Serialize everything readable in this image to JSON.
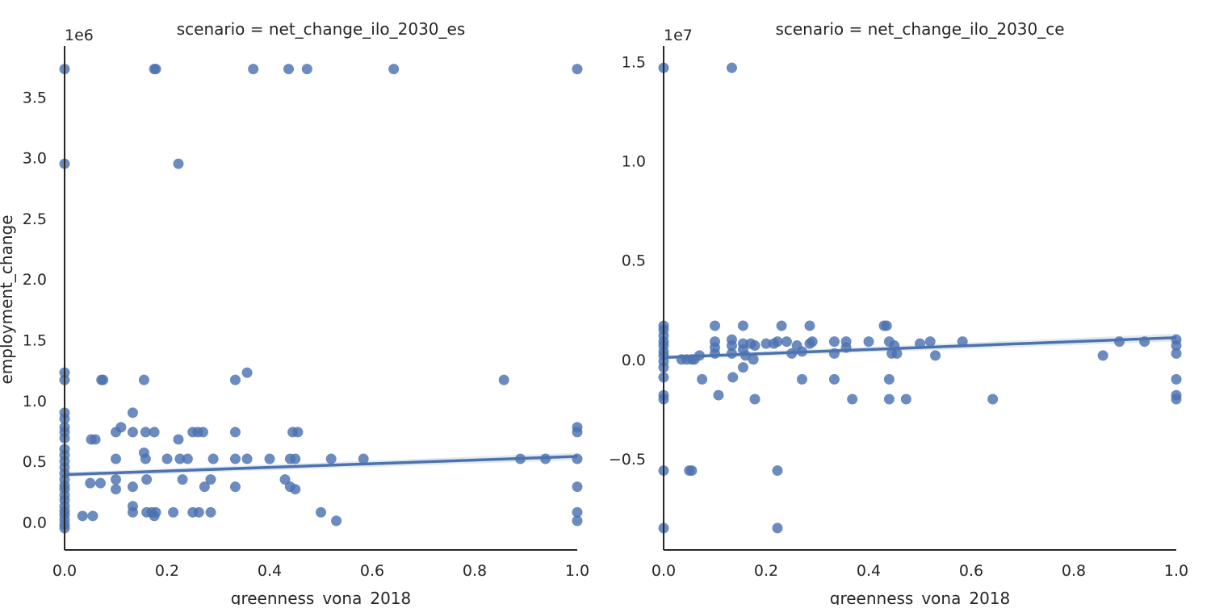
{
  "chart_data": [
    {
      "type": "scatter",
      "title": "scenario = net_change_ilo_2030_es",
      "xlabel": "greenness_vona_2018",
      "ylabel": "employment_change",
      "offset_text": "1e6",
      "xlim": [
        0,
        1
      ],
      "ylim": [
        -0.23,
        3.92
      ],
      "y_scale_factor": 1000000,
      "xticks": [
        0,
        0.2,
        0.4,
        0.6,
        0.8,
        1
      ],
      "xtick_labels": [
        "0.0",
        "0.2",
        "0.4",
        "0.6",
        "0.8",
        "1.0"
      ],
      "yticks": [
        0,
        0.5,
        1,
        1.5,
        2,
        2.5,
        3,
        3.5
      ],
      "ytick_labels": [
        "0.0",
        "0.5",
        "1.0",
        "1.5",
        "2.0",
        "2.5",
        "3.0",
        "3.5"
      ],
      "grid": false,
      "marker_color": "#4c72b0",
      "regression": {
        "x": [
          0,
          1
        ],
        "y": [
          0.39,
          0.54
        ],
        "ci_upper": [
          0.41,
          0.57
        ],
        "ci_lower": [
          0.37,
          0.51
        ]
      },
      "points": [
        [
          0,
          3.73
        ],
        [
          0,
          2.95
        ],
        [
          0,
          1.23
        ],
        [
          0,
          1.17
        ],
        [
          0,
          0.9
        ],
        [
          0,
          0.85
        ],
        [
          0,
          0.78
        ],
        [
          0,
          0.74
        ],
        [
          0,
          0.69
        ],
        [
          0,
          0.6
        ],
        [
          0,
          0.55
        ],
        [
          0,
          0.5
        ],
        [
          0,
          0.45
        ],
        [
          0,
          0.4
        ],
        [
          0,
          0.35
        ],
        [
          0,
          0.3
        ],
        [
          0,
          0.27
        ],
        [
          0,
          0.22
        ],
        [
          0,
          0.18
        ],
        [
          0,
          0.13
        ],
        [
          0,
          0.09
        ],
        [
          0,
          0.06
        ],
        [
          0,
          0.02
        ],
        [
          0,
          -0.02
        ],
        [
          0,
          -0.05
        ],
        [
          0.175,
          3.73
        ],
        [
          0.178,
          3.73
        ],
        [
          0.368,
          3.73
        ],
        [
          0.437,
          3.73
        ],
        [
          0.473,
          3.73
        ],
        [
          0.642,
          3.73
        ],
        [
          1.0,
          3.73
        ],
        [
          0.222,
          2.95
        ],
        [
          0.035,
          0.05
        ],
        [
          0.055,
          0.05
        ],
        [
          0.05,
          0.32
        ],
        [
          0.07,
          0.32
        ],
        [
          0.052,
          0.68
        ],
        [
          0.06,
          0.68
        ],
        [
          0.072,
          1.17
        ],
        [
          0.075,
          1.17
        ],
        [
          0.1,
          0.27
        ],
        [
          0.1,
          0.35
        ],
        [
          0.1,
          0.52
        ],
        [
          0.1,
          0.74
        ],
        [
          0.11,
          0.78
        ],
        [
          0.133,
          0.9
        ],
        [
          0.133,
          0.74
        ],
        [
          0.133,
          0.29
        ],
        [
          0.133,
          0.13
        ],
        [
          0.133,
          0.08
        ],
        [
          0.155,
          1.17
        ],
        [
          0.155,
          0.57
        ],
        [
          0.158,
          0.52
        ],
        [
          0.158,
          0.74
        ],
        [
          0.16,
          0.35
        ],
        [
          0.16,
          0.08
        ],
        [
          0.17,
          0.08
        ],
        [
          0.175,
          0.74
        ],
        [
          0.175,
          0.05
        ],
        [
          0.178,
          0.08
        ],
        [
          0.2,
          0.52
        ],
        [
          0.212,
          0.08
        ],
        [
          0.222,
          0.68
        ],
        [
          0.225,
          0.52
        ],
        [
          0.23,
          0.35
        ],
        [
          0.24,
          0.52
        ],
        [
          0.25,
          0.74
        ],
        [
          0.25,
          0.08
        ],
        [
          0.26,
          0.74
        ],
        [
          0.262,
          0.08
        ],
        [
          0.27,
          0.74
        ],
        [
          0.273,
          0.29
        ],
        [
          0.285,
          0.35
        ],
        [
          0.285,
          0.08
        ],
        [
          0.29,
          0.52
        ],
        [
          0.333,
          1.17
        ],
        [
          0.333,
          0.74
        ],
        [
          0.333,
          0.52
        ],
        [
          0.333,
          0.29
        ],
        [
          0.356,
          1.23
        ],
        [
          0.356,
          0.52
        ],
        [
          0.4,
          0.52
        ],
        [
          0.43,
          0.35
        ],
        [
          0.44,
          0.29
        ],
        [
          0.44,
          0.52
        ],
        [
          0.445,
          0.74
        ],
        [
          0.45,
          0.27
        ],
        [
          0.45,
          0.52
        ],
        [
          0.455,
          0.74
        ],
        [
          0.5,
          0.08
        ],
        [
          0.52,
          0.52
        ],
        [
          0.53,
          0.01
        ],
        [
          0.583,
          0.52
        ],
        [
          0.857,
          1.17
        ],
        [
          0.889,
          0.52
        ],
        [
          0.938,
          0.52
        ],
        [
          1.0,
          0.78
        ],
        [
          1.0,
          0.74
        ],
        [
          1.0,
          0.52
        ],
        [
          1.0,
          0.29
        ],
        [
          1.0,
          0.08
        ],
        [
          1.0,
          0.01
        ]
      ]
    },
    {
      "type": "scatter",
      "title": "scenario = net_change_ilo_2030_ce",
      "xlabel": "greenness_vona_2018",
      "ylabel": "",
      "offset_text": "1e7",
      "xlim": [
        0,
        1
      ],
      "ylim": [
        -0.96,
        1.58
      ],
      "y_scale_factor": 10000000,
      "xticks": [
        0,
        0.2,
        0.4,
        0.6,
        0.8,
        1
      ],
      "xtick_labels": [
        "0.0",
        "0.2",
        "0.4",
        "0.6",
        "0.8",
        "1.0"
      ],
      "yticks": [
        -0.5,
        0,
        0.5,
        1,
        1.5
      ],
      "ytick_labels": [
        "−0.5",
        "0.0",
        "0.5",
        "1.0",
        "1.5"
      ],
      "grid": false,
      "marker_color": "#4c72b0",
      "regression": {
        "x": [
          0,
          1
        ],
        "y": [
          0.01,
          0.11
        ],
        "ci_upper": [
          0.02,
          0.13
        ],
        "ci_lower": [
          0.0,
          0.09
        ]
      },
      "points": [
        [
          0,
          1.47
        ],
        [
          0,
          0.17
        ],
        [
          0,
          0.15
        ],
        [
          0,
          0.12
        ],
        [
          0,
          0.09
        ],
        [
          0,
          0.07
        ],
        [
          0,
          0.04
        ],
        [
          0,
          0.02
        ],
        [
          0,
          -0.01
        ],
        [
          0,
          -0.04
        ],
        [
          0,
          -0.09
        ],
        [
          0,
          -0.18
        ],
        [
          0,
          -0.2
        ],
        [
          0,
          -0.56
        ],
        [
          0,
          -0.85
        ],
        [
          0.133,
          1.47
        ],
        [
          0.035,
          0.0
        ],
        [
          0.045,
          0.0
        ],
        [
          0.055,
          0.0
        ],
        [
          0.06,
          0.0
        ],
        [
          0.07,
          0.02
        ],
        [
          0.075,
          -0.1
        ],
        [
          0.05,
          -0.56
        ],
        [
          0.055,
          -0.56
        ],
        [
          0.1,
          0.17
        ],
        [
          0.1,
          0.09
        ],
        [
          0.1,
          0.06
        ],
        [
          0.1,
          0.03
        ],
        [
          0.107,
          -0.18
        ],
        [
          0.133,
          0.1
        ],
        [
          0.133,
          0.07
        ],
        [
          0.133,
          0.03
        ],
        [
          0.135,
          -0.09
        ],
        [
          0.155,
          0.17
        ],
        [
          0.155,
          0.08
        ],
        [
          0.155,
          0.05
        ],
        [
          0.155,
          -0.04
        ],
        [
          0.16,
          0.02
        ],
        [
          0.17,
          0.08
        ],
        [
          0.175,
          0.0
        ],
        [
          0.178,
          -0.2
        ],
        [
          0.178,
          0.07
        ],
        [
          0.2,
          0.08
        ],
        [
          0.215,
          0.08
        ],
        [
          0.222,
          0.09
        ],
        [
          0.222,
          -0.56
        ],
        [
          0.222,
          -0.85
        ],
        [
          0.23,
          0.17
        ],
        [
          0.24,
          0.09
        ],
        [
          0.25,
          0.03
        ],
        [
          0.26,
          0.07
        ],
        [
          0.27,
          -0.1
        ],
        [
          0.27,
          0.04
        ],
        [
          0.285,
          0.17
        ],
        [
          0.285,
          0.08
        ],
        [
          0.29,
          0.09
        ],
        [
          0.333,
          0.09
        ],
        [
          0.333,
          0.03
        ],
        [
          0.333,
          -0.1
        ],
        [
          0.356,
          0.09
        ],
        [
          0.356,
          0.06
        ],
        [
          0.368,
          -0.2
        ],
        [
          0.4,
          0.09
        ],
        [
          0.43,
          0.17
        ],
        [
          0.435,
          0.17
        ],
        [
          0.44,
          0.09
        ],
        [
          0.44,
          -0.1
        ],
        [
          0.44,
          -0.2
        ],
        [
          0.445,
          0.03
        ],
        [
          0.45,
          0.07
        ],
        [
          0.455,
          0.03
        ],
        [
          0.473,
          -0.2
        ],
        [
          0.5,
          0.08
        ],
        [
          0.52,
          0.09
        ],
        [
          0.53,
          0.02
        ],
        [
          0.583,
          0.09
        ],
        [
          0.642,
          -0.2
        ],
        [
          0.857,
          0.02
        ],
        [
          0.889,
          0.09
        ],
        [
          0.938,
          0.09
        ],
        [
          1.0,
          0.1
        ],
        [
          1.0,
          0.07
        ],
        [
          1.0,
          0.03
        ],
        [
          1.0,
          -0.1
        ],
        [
          1.0,
          -0.18
        ],
        [
          1.0,
          -0.2
        ]
      ]
    }
  ]
}
